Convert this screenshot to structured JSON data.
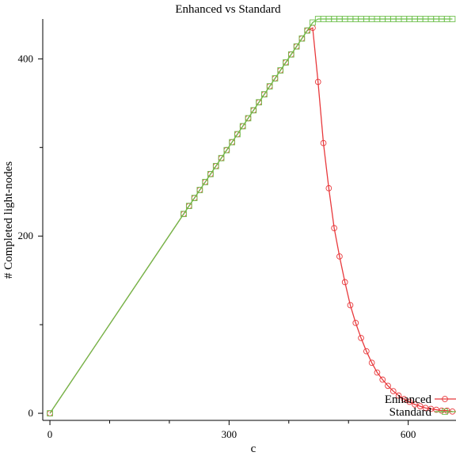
{
  "chart_data": {
    "type": "line",
    "title": "Enhanced vs Standard",
    "xlabel": "c",
    "ylabel": "# Completed light-nodes",
    "xlim": [
      -12,
      680
    ],
    "ylim": [
      -8,
      445
    ],
    "x_ticks": [
      0,
      300,
      600
    ],
    "x_minor_ticks": [
      100,
      200,
      400,
      500
    ],
    "y_ticks": [
      0,
      200,
      400
    ],
    "y_minor_ticks": [
      100,
      300
    ],
    "grid": false,
    "legend_position": "bottom-right",
    "series": [
      {
        "name": "Enhanced",
        "color": "#e8393c",
        "marker": "circle",
        "x": [
          0,
          224,
          233,
          242,
          251,
          260,
          269,
          278,
          287,
          296,
          305,
          314,
          323,
          332,
          341,
          350,
          359,
          368,
          377,
          386,
          395,
          404,
          413,
          422,
          431,
          440,
          449,
          458,
          467,
          476,
          485,
          494,
          503,
          512,
          521,
          530,
          539,
          548,
          557,
          566,
          575,
          584,
          593,
          602,
          611,
          620,
          629,
          638,
          647,
          656,
          665,
          674
        ],
        "y": [
          0,
          225,
          234,
          243,
          252,
          261,
          270,
          279,
          288,
          297,
          306,
          315,
          324,
          333,
          342,
          351,
          360,
          369,
          378,
          387,
          396,
          405,
          414,
          423,
          432,
          435,
          374,
          305,
          254,
          209,
          177,
          148,
          122,
          102,
          85,
          70,
          57,
          46,
          38,
          31,
          25,
          20,
          16,
          13,
          10,
          8,
          6,
          5,
          4,
          3,
          3,
          2
        ]
      },
      {
        "name": "Standard",
        "color": "#6cbf4a",
        "marker": "square",
        "x": [
          0,
          224,
          233,
          242,
          251,
          260,
          269,
          278,
          287,
          296,
          305,
          314,
          323,
          332,
          341,
          350,
          359,
          368,
          377,
          386,
          395,
          404,
          413,
          422,
          431,
          440,
          449,
          458,
          467,
          476,
          485,
          494,
          503,
          512,
          521,
          530,
          539,
          548,
          557,
          566,
          575,
          584,
          593,
          602,
          611,
          620,
          629,
          638,
          647,
          656,
          665,
          674
        ],
        "y": [
          0,
          225,
          234,
          243,
          252,
          261,
          270,
          279,
          288,
          297,
          306,
          315,
          324,
          333,
          342,
          351,
          360,
          369,
          378,
          387,
          396,
          405,
          414,
          423,
          432,
          441,
          445,
          445,
          445,
          445,
          445,
          445,
          445,
          445,
          445,
          445,
          445,
          445,
          445,
          445,
          445,
          445,
          445,
          445,
          445,
          445,
          445,
          445,
          445,
          445,
          445,
          445
        ]
      }
    ]
  }
}
